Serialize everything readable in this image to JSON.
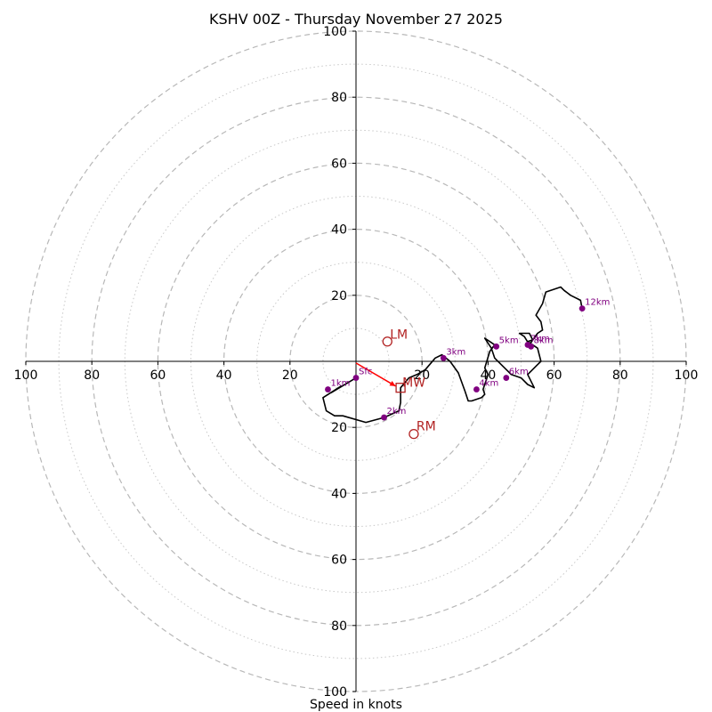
{
  "chart_data": {
    "type": "hodograph",
    "title": "KSHV 00Z - Thursday November 27 2025",
    "xlabel": "Speed in knots",
    "units": "knots",
    "range": [
      -100,
      100
    ],
    "ring_major": [
      20,
      40,
      60,
      80,
      100
    ],
    "ring_minor": [
      10,
      30,
      50,
      70,
      90
    ],
    "tick_values": [
      20,
      40,
      60,
      80,
      100
    ],
    "x_tick_labels": [
      "100",
      "80",
      "60",
      "40",
      "20",
      "20",
      "40",
      "60",
      "80",
      "100"
    ],
    "x_tick_values": [
      -100,
      -80,
      -60,
      -40,
      -20,
      20,
      40,
      60,
      80,
      100
    ],
    "y_tick_labels": [
      "100",
      "80",
      "60",
      "40",
      "20",
      "20",
      "40",
      "60",
      "80",
      "100"
    ],
    "y_tick_values": [
      100,
      80,
      60,
      40,
      20,
      -20,
      -40,
      -60,
      -80,
      -100
    ],
    "trace": [
      [
        0,
        -5
      ],
      [
        -7.5,
        -9.5
      ],
      [
        -4.5,
        -7.5
      ],
      [
        -10,
        -11
      ],
      [
        -9,
        -15
      ],
      [
        -6.5,
        -16.5
      ],
      [
        -4,
        -16.5
      ],
      [
        3,
        -18.5
      ],
      [
        8.5,
        -17
      ],
      [
        13,
        -15
      ],
      [
        13.5,
        -12.5
      ],
      [
        13.5,
        -8
      ],
      [
        16,
        -5
      ],
      [
        18.5,
        -4
      ],
      [
        21,
        -2.5
      ],
      [
        24,
        1
      ],
      [
        26,
        2
      ],
      [
        28.5,
        0
      ],
      [
        31,
        -3.5
      ],
      [
        33,
        -9
      ],
      [
        34,
        -12
      ],
      [
        35,
        -12
      ],
      [
        38,
        -11
      ],
      [
        39,
        -10
      ],
      [
        38.5,
        -8.5
      ],
      [
        40,
        -4
      ],
      [
        39,
        -2
      ],
      [
        40.5,
        3
      ],
      [
        42,
        5
      ],
      [
        39,
        7
      ],
      [
        41,
        4
      ],
      [
        42,
        1
      ],
      [
        44,
        -1
      ],
      [
        46,
        -3
      ],
      [
        47,
        -4
      ],
      [
        50,
        -5
      ],
      [
        52,
        -7
      ],
      [
        54,
        -8
      ],
      [
        52,
        -4
      ],
      [
        55,
        -1
      ],
      [
        56,
        0
      ],
      [
        55,
        4
      ],
      [
        52,
        6
      ],
      [
        53.5,
        6.5
      ],
      [
        52.5,
        8.5
      ],
      [
        49.5,
        8.5
      ],
      [
        51,
        7.5
      ],
      [
        52.5,
        5
      ],
      [
        55,
        8.5
      ],
      [
        56.5,
        9.5
      ],
      [
        56,
        12
      ],
      [
        54.5,
        14
      ],
      [
        56.5,
        17.5
      ],
      [
        57.5,
        21
      ],
      [
        62,
        22.5
      ],
      [
        63,
        21.5
      ],
      [
        65,
        20
      ],
      [
        68,
        18.5
      ],
      [
        68.5,
        16
      ]
    ],
    "levels": [
      {
        "label": "Sfc",
        "u": 0,
        "v": -5
      },
      {
        "label": "1km",
        "u": -8.5,
        "v": -8.5
      },
      {
        "label": "2km",
        "u": 8.5,
        "v": -17
      },
      {
        "label": "3km",
        "u": 26.5,
        "v": 1
      },
      {
        "label": "4km",
        "u": 36.5,
        "v": -8.5
      },
      {
        "label": "5km",
        "u": 42.5,
        "v": 4.5
      },
      {
        "label": "6km",
        "u": 45.5,
        "v": -5
      },
      {
        "label": "7km",
        "u": 52,
        "v": 5
      },
      {
        "label": "8km",
        "u": 53,
        "v": 4.5
      },
      {
        "label": "12km",
        "u": 68.5,
        "v": 16
      }
    ],
    "storm_motion": {
      "mean_wind": {
        "label": "MW",
        "u": 13.5,
        "v": -8
      },
      "left_mover": {
        "label": "LM",
        "u": 9.5,
        "v": 6
      },
      "right_mover": {
        "label": "RM",
        "u": 17.5,
        "v": -22
      }
    },
    "shear_vector": {
      "from_u": 0,
      "from_v": -0.5,
      "to_u": 12,
      "to_v": -7.5
    },
    "colors": {
      "trace": "#000000",
      "level_marker": "#800080",
      "storm_motion": "#b22222",
      "shear_vector": "#ff0000",
      "grid": "#b8b8b8"
    }
  }
}
